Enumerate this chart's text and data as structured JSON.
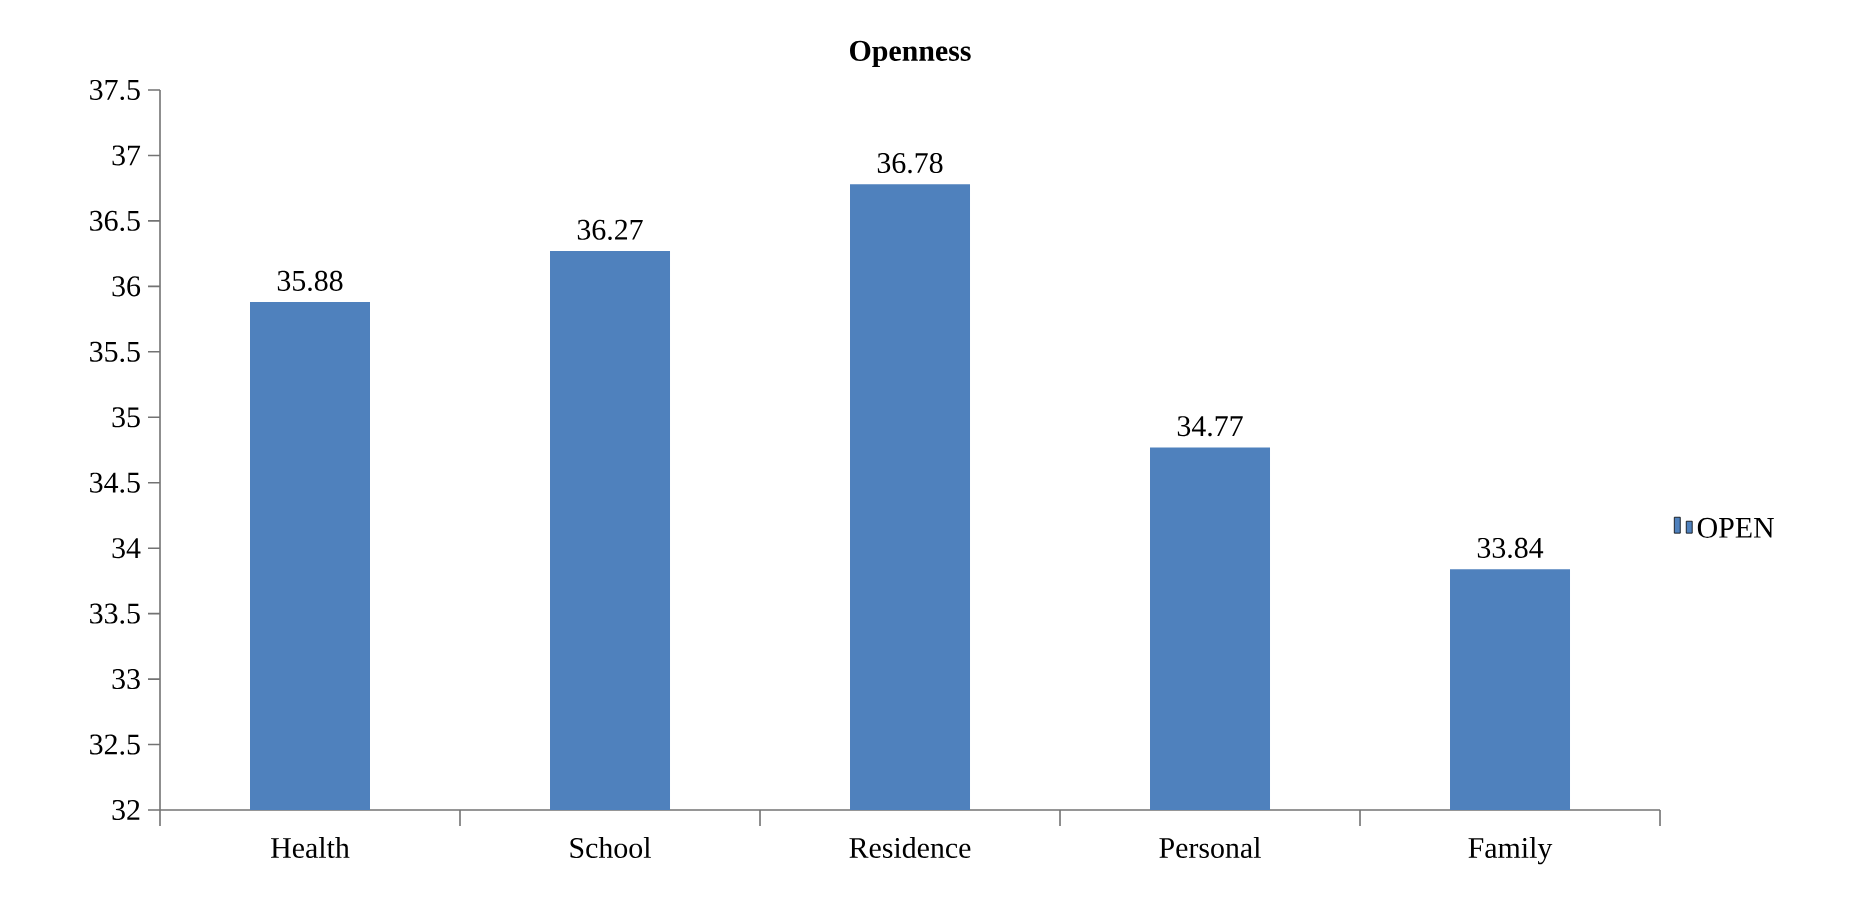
{
  "chart_data": {
    "type": "bar",
    "title": "Openness",
    "categories": [
      "Health",
      "School",
      "Residence",
      "Personal",
      "Family"
    ],
    "series": [
      {
        "name": "OPEN",
        "color": "#4f81bd",
        "values": [
          35.88,
          36.27,
          36.78,
          34.77,
          33.84
        ]
      }
    ],
    "ylim": [
      32,
      37.5
    ],
    "yticks": [
      32,
      32.5,
      33,
      33.5,
      34,
      34.5,
      35,
      35.5,
      36,
      36.5,
      37,
      37.5
    ],
    "data_labels": true,
    "grid": false,
    "legend": "right"
  }
}
